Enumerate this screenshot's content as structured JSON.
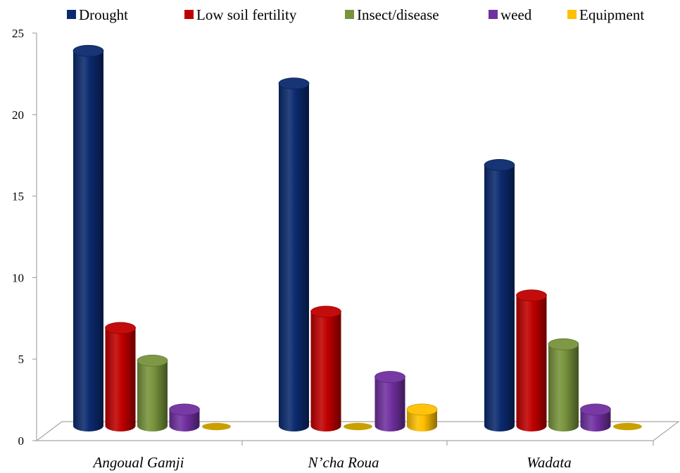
{
  "chart_data": {
    "type": "bar",
    "categories": [
      "Angoual Gamji",
      "N’cha Roua",
      "Wadata"
    ],
    "series": [
      {
        "name": "Drought",
        "color": "#0b2a6e",
        "values": [
          23,
          21,
          16
        ]
      },
      {
        "name": "Low soil fertility",
        "color": "#c00000",
        "values": [
          6,
          7,
          8
        ]
      },
      {
        "name": "Insect/disease",
        "color": "#77933c",
        "values": [
          4,
          0,
          5
        ]
      },
      {
        "name": "weed",
        "color": "#7030a0",
        "values": [
          1,
          3,
          1
        ]
      },
      {
        "name": "Equipment",
        "color": "#ffc000",
        "values": [
          0,
          1,
          0
        ]
      }
    ],
    "yticks": [
      0,
      5,
      10,
      15,
      20,
      25
    ],
    "ylim": [
      0,
      25
    ],
    "title": "",
    "xlabel": "",
    "ylabel": "",
    "legend_position": "top",
    "style": "3d-cylinder",
    "grid": false
  }
}
